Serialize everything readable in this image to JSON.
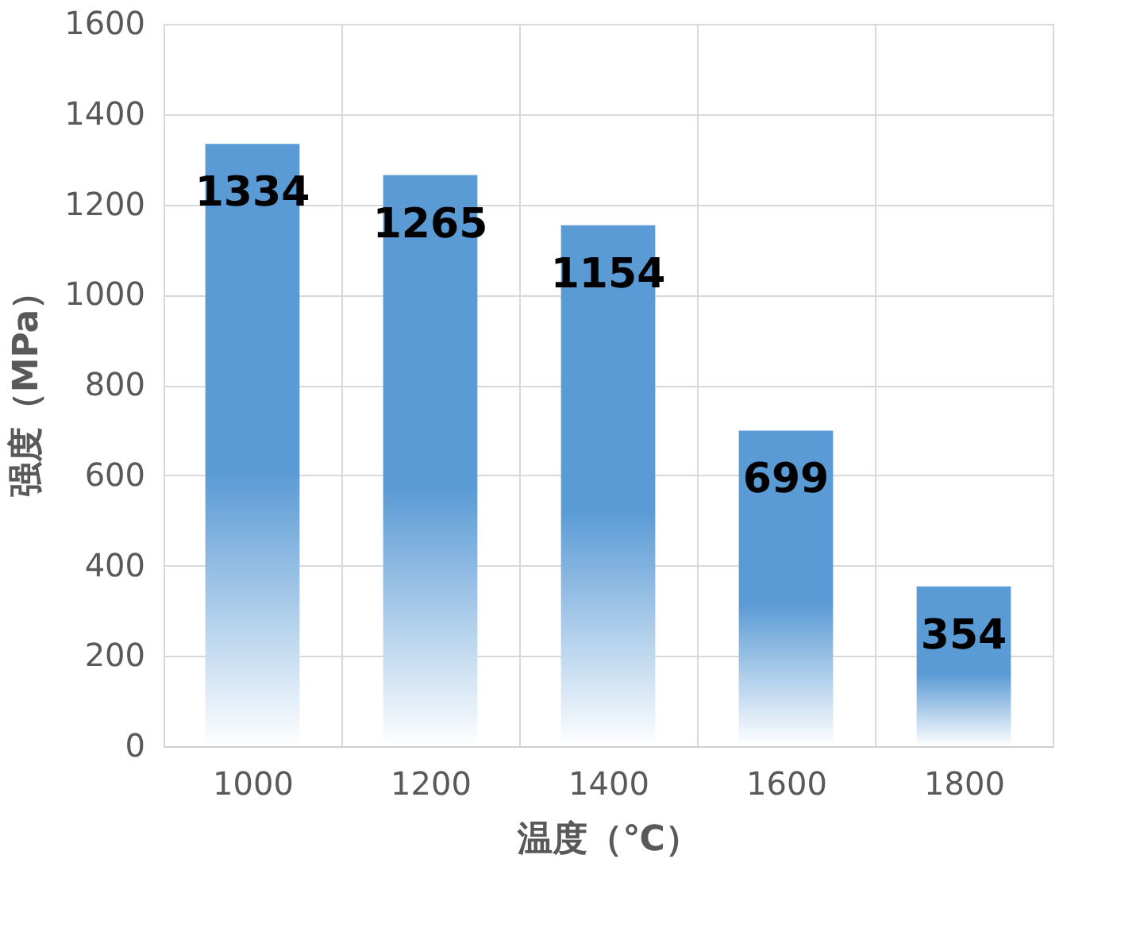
{
  "chart_data": {
    "type": "bar",
    "xlabel": "温度（℃）",
    "ylabel": "强度（MPa）",
    "categories": [
      "1000",
      "1200",
      "1400",
      "1600",
      "1800"
    ],
    "values": [
      1334,
      1265,
      1154,
      699,
      354
    ],
    "color": "#5b9bd5",
    "ylim": [
      0,
      1600
    ],
    "yticks": [
      0,
      200,
      400,
      600,
      800,
      1000,
      1200,
      1400,
      1600
    ],
    "grid": true,
    "data_labels": true
  }
}
